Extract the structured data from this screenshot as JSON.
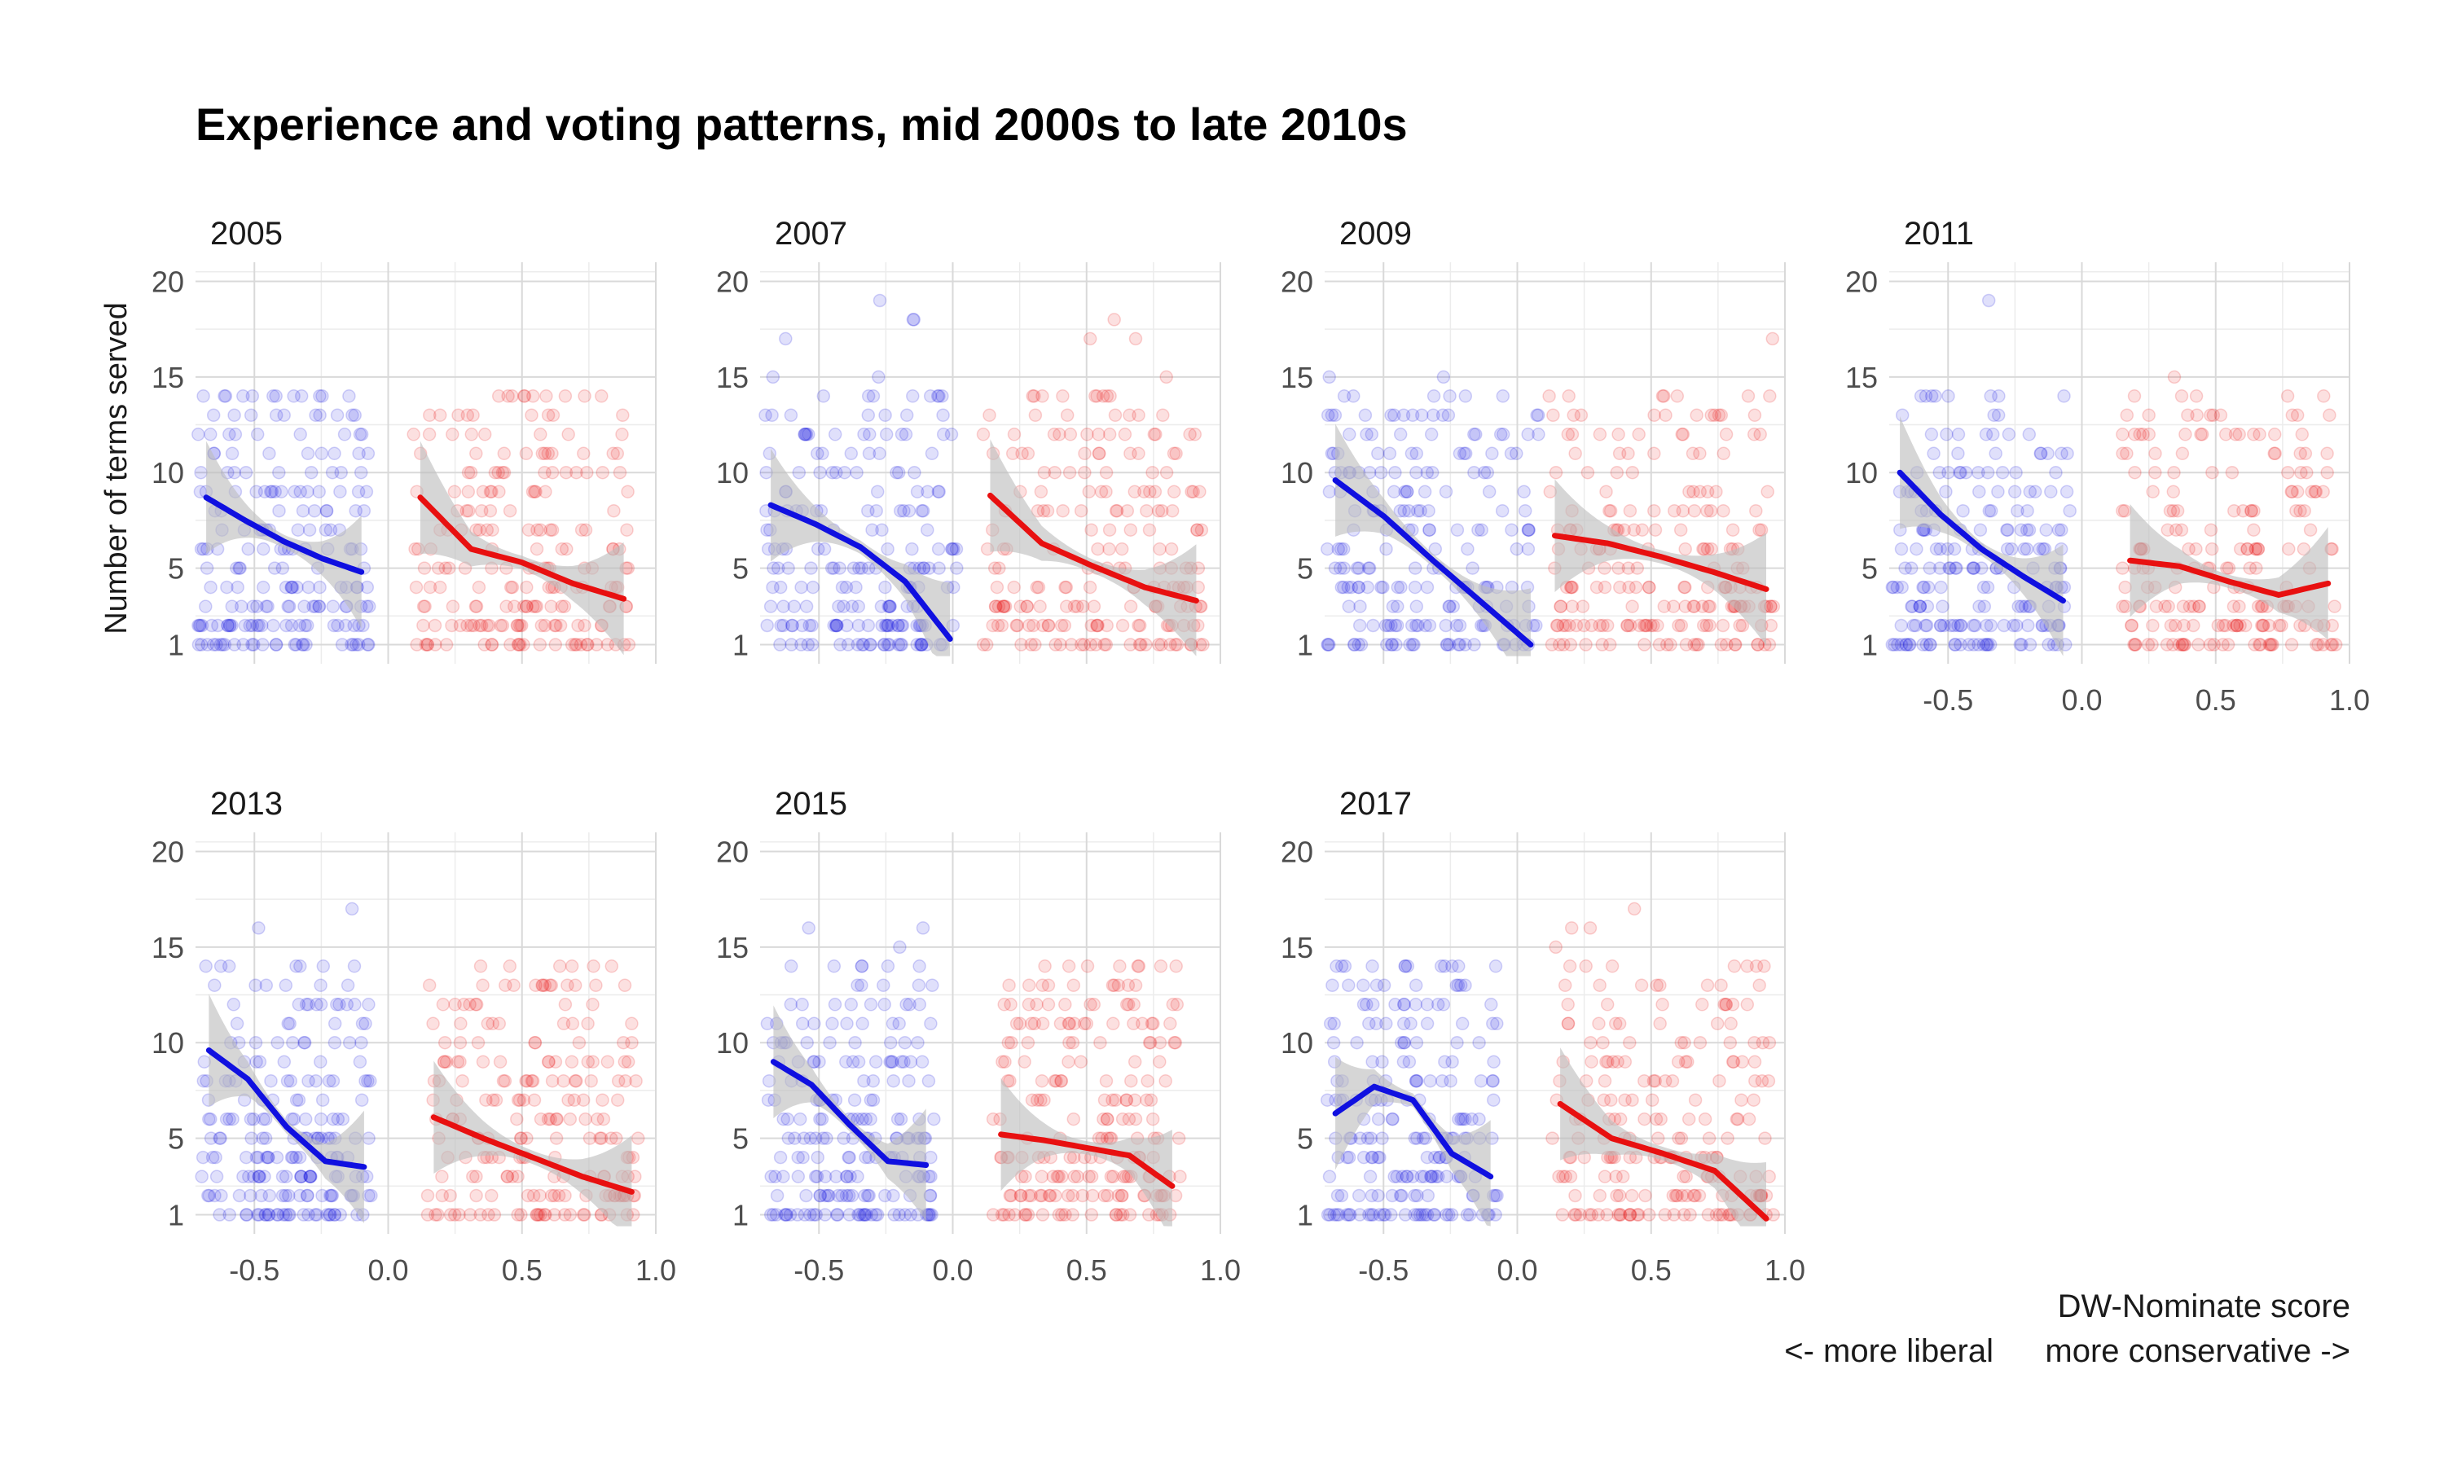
{
  "title": "Experience and voting patterns, mid 2000s to late 2010s",
  "caption": {
    "line1": "DW-Nominate score",
    "left": "<- more liberal",
    "right": "more conservative ->"
  },
  "colors": {
    "democrat": "#1010e0",
    "republican": "#e81010",
    "band": "#bdbdbd"
  },
  "chart_data": {
    "type": "scatter",
    "ylabel": "Number of terms served",
    "xlim": [
      -0.72,
      1.0
    ],
    "ylim": [
      1,
      20
    ],
    "x_ticks": [
      "-0.5",
      "0.0",
      "0.5",
      "1.0"
    ],
    "x_tick_values": [
      -0.5,
      0.0,
      0.5,
      1.0
    ],
    "y_ticks": [
      "1",
      "5",
      "10",
      "15",
      "20"
    ],
    "y_tick_values": [
      1,
      5,
      10,
      15,
      20
    ],
    "grid": true,
    "panels": [
      {
        "label": "2005",
        "dem_x": [
          -0.68,
          -0.1
        ],
        "rep_x": [
          0.12,
          0.88
        ],
        "dem_curve": [
          8.7,
          7.5,
          6.4,
          5.5,
          4.8
        ],
        "rep_curve": [
          8.7,
          6.0,
          5.3,
          4.2,
          3.4
        ]
      },
      {
        "label": "2007",
        "dem_x": [
          -0.68,
          -0.01
        ],
        "rep_x": [
          0.14,
          0.91
        ],
        "dem_curve": [
          8.3,
          7.3,
          6.1,
          4.3,
          1.3
        ],
        "rep_curve": [
          8.8,
          6.3,
          5.1,
          4.0,
          3.3
        ]
      },
      {
        "label": "2009",
        "dem_x": [
          -0.68,
          0.05
        ],
        "rep_x": [
          0.14,
          0.93
        ],
        "dem_curve": [
          9.6,
          7.7,
          5.4,
          3.2,
          1.0
        ],
        "rep_curve": [
          6.7,
          6.3,
          5.6,
          4.8,
          3.9
        ]
      },
      {
        "label": "2011",
        "dem_x": [
          -0.68,
          -0.07
        ],
        "rep_x": [
          0.18,
          0.92
        ],
        "dem_curve": [
          10.0,
          7.8,
          6.0,
          4.6,
          3.3
        ],
        "rep_curve": [
          5.4,
          5.1,
          4.3,
          3.6,
          4.2
        ]
      },
      {
        "label": "2013",
        "dem_x": [
          -0.67,
          -0.09
        ],
        "rep_x": [
          0.17,
          0.91
        ],
        "dem_curve": [
          9.6,
          8.1,
          5.6,
          3.8,
          3.5
        ],
        "rep_curve": [
          6.1,
          5.0,
          4.0,
          3.0,
          2.2
        ]
      },
      {
        "label": "2015",
        "dem_x": [
          -0.67,
          -0.1
        ],
        "rep_x": [
          0.18,
          0.82
        ],
        "dem_curve": [
          9.0,
          7.8,
          5.7,
          3.8,
          3.6
        ],
        "rep_curve": [
          5.2,
          4.9,
          4.5,
          4.1,
          2.5
        ]
      },
      {
        "label": "2017",
        "dem_x": [
          -0.68,
          -0.1
        ],
        "rep_x": [
          0.16,
          0.93
        ],
        "dem_curve": [
          6.3,
          7.7,
          7.0,
          4.2,
          3.0
        ],
        "rep_curve": [
          6.8,
          5.0,
          4.2,
          3.3,
          0.8
        ]
      }
    ]
  }
}
